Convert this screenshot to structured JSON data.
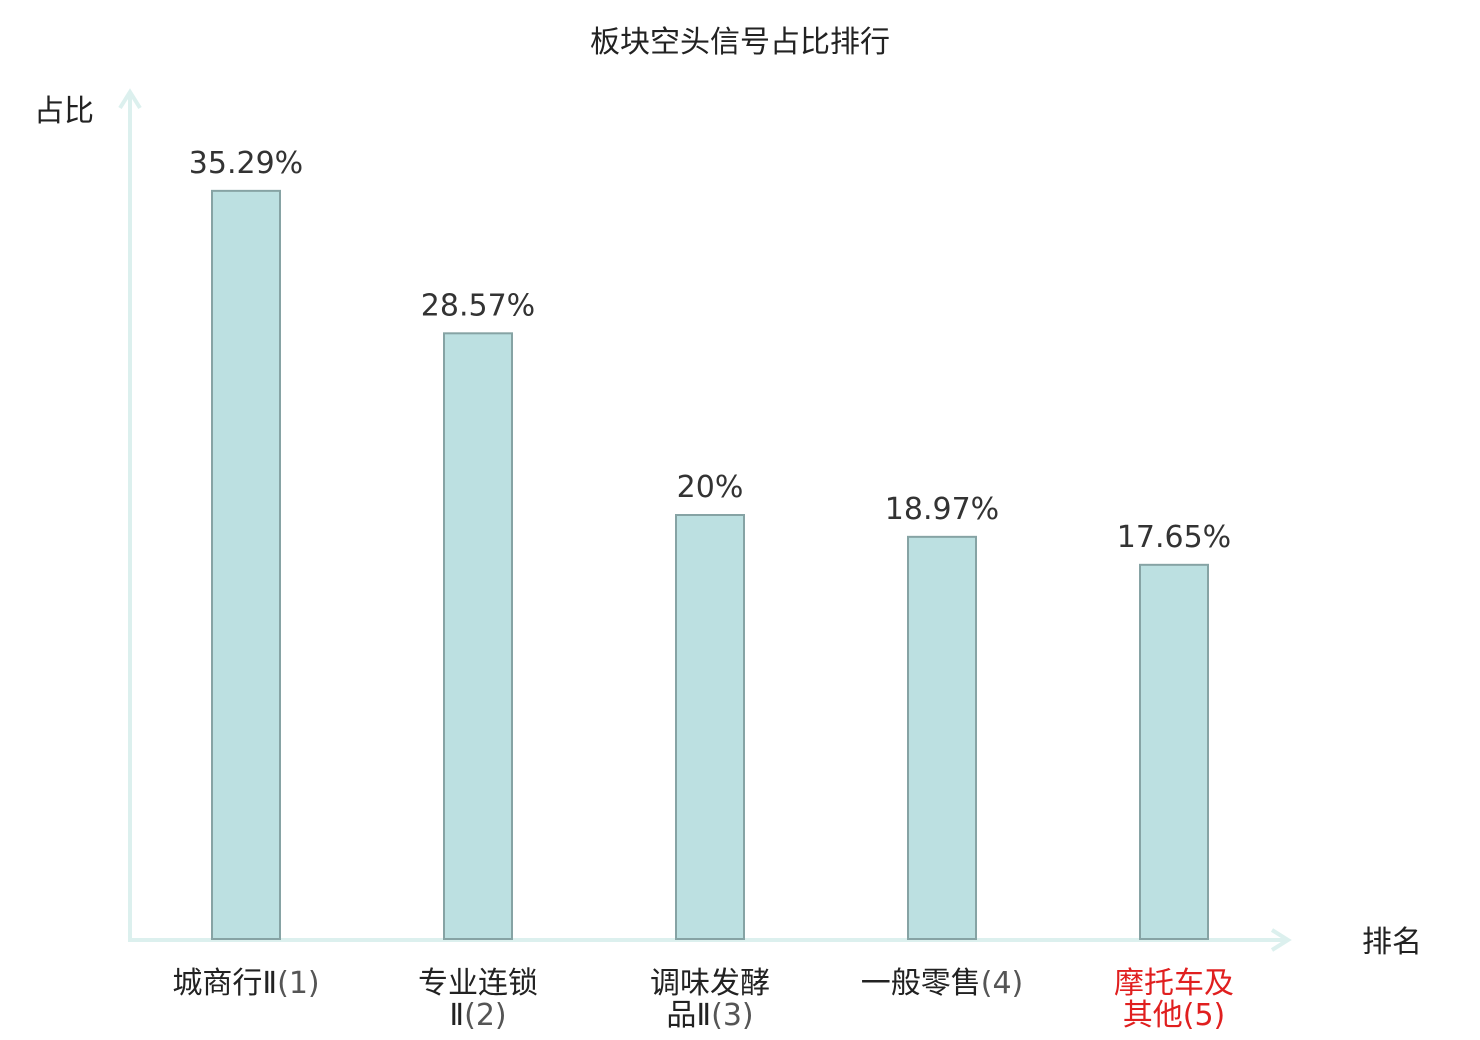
{
  "chart_data": {
    "type": "bar",
    "title": "板块空头信号占比排行",
    "ylabel": "占比",
    "xlabel": "排名",
    "categories": [
      "城商行Ⅱ(1)",
      "专业连锁Ⅱ(2)",
      "调味发酵品Ⅱ(3)",
      "一般零售(4)",
      "摩托车及其他(5)"
    ],
    "category_lines": [
      [
        {
          "text": "城商行Ⅱ",
          "rank": "(1)"
        }
      ],
      [
        {
          "text": "专业连锁",
          "rank": ""
        },
        {
          "text": "Ⅱ",
          "rank": "(2)"
        }
      ],
      [
        {
          "text": "调味发酵",
          "rank": ""
        },
        {
          "text": "品Ⅱ",
          "rank": "(3)"
        }
      ],
      [
        {
          "text": "一般零售",
          "rank": "(4)"
        }
      ],
      [
        {
          "text": "摩托车及",
          "rank": ""
        },
        {
          "text": "其他",
          "rank": "(5)"
        }
      ]
    ],
    "values": [
      35.29,
      28.57,
      20,
      18.97,
      17.65
    ],
    "value_labels": [
      "35.29%",
      "28.57%",
      "20%",
      "18.97%",
      "17.65%"
    ],
    "highlight_index": 4,
    "ylim": [
      0,
      40
    ],
    "grid": false,
    "colors": {
      "bar_fill": "#bce0e1",
      "bar_stroke": "#86a3a4",
      "axis": "#dcf0ee",
      "text": "#222222",
      "highlight": "#e01f1f"
    }
  }
}
